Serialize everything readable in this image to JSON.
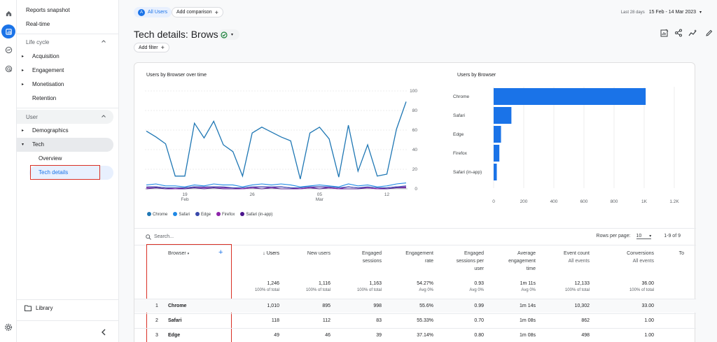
{
  "sidebar": {
    "reports_snapshot": "Reports snapshot",
    "realtime": "Real-time",
    "lifecycle": "Life cycle",
    "acquisition": "Acquisition",
    "engagement": "Engagement",
    "monetisation": "Monetisation",
    "retention": "Retention",
    "user": "User",
    "demographics": "Demographics",
    "tech": "Tech",
    "overview": "Overview",
    "tech_details": "Tech details",
    "library": "Library"
  },
  "header": {
    "all_users": "All Users",
    "all_users_initial": "A",
    "add_comparison": "Add comparison",
    "date_label": "Last 28 days",
    "date_range": "15 Feb - 14 Mar 2023",
    "title": "Tech details: Browser",
    "add_filter": "Add filter"
  },
  "line_chart": {
    "title": "Users by Browser over time",
    "y_ticks": [
      "100",
      "80",
      "60",
      "40",
      "20",
      "0"
    ],
    "x_ticks": [
      {
        "day": "19",
        "month": "Feb"
      },
      {
        "day": "26",
        "month": ""
      },
      {
        "day": "05",
        "month": "Mar"
      },
      {
        "day": "12",
        "month": ""
      }
    ],
    "legend": [
      {
        "name": "Chrome",
        "color": "#1f77b4"
      },
      {
        "name": "Safari",
        "color": "#1e88e5"
      },
      {
        "name": "Edge",
        "color": "#3949ab"
      },
      {
        "name": "Firefox",
        "color": "#8e24aa"
      },
      {
        "name": "Safari (in-app)",
        "color": "#4a148c"
      }
    ]
  },
  "chart_data": [
    {
      "type": "line",
      "title": "Users by Browser over time",
      "x": [
        "15 Feb",
        "16 Feb",
        "17 Feb",
        "18 Feb",
        "19 Feb",
        "20 Feb",
        "21 Feb",
        "22 Feb",
        "23 Feb",
        "24 Feb",
        "25 Feb",
        "26 Feb",
        "27 Feb",
        "28 Feb",
        "01 Mar",
        "02 Mar",
        "03 Mar",
        "04 Mar",
        "05 Mar",
        "06 Mar",
        "07 Mar",
        "08 Mar",
        "09 Mar",
        "10 Mar",
        "11 Mar",
        "12 Mar",
        "13 Mar",
        "14 Mar"
      ],
      "ylim": [
        0,
        100
      ],
      "series": [
        {
          "name": "Chrome",
          "values": [
            59,
            53,
            46,
            13,
            13,
            67,
            52,
            69,
            45,
            38,
            13,
            57,
            63,
            58,
            53,
            49,
            10,
            57,
            63,
            51,
            12,
            65,
            18,
            45,
            13,
            15,
            61,
            89
          ]
        },
        {
          "name": "Safari",
          "values": [
            4,
            5,
            3,
            3,
            2,
            4,
            3,
            5,
            4,
            4,
            2,
            4,
            5,
            4,
            5,
            4,
            2,
            3,
            4,
            3,
            2,
            5,
            3,
            4,
            2,
            3,
            5,
            6
          ]
        },
        {
          "name": "Edge",
          "values": [
            2,
            2,
            1,
            1,
            1,
            2,
            2,
            2,
            2,
            1,
            1,
            2,
            2,
            2,
            2,
            1,
            1,
            2,
            2,
            2,
            1,
            2,
            1,
            2,
            1,
            1,
            2,
            3
          ]
        },
        {
          "name": "Firefox",
          "values": [
            1,
            2,
            1,
            0,
            1,
            2,
            1,
            2,
            1,
            1,
            0,
            1,
            2,
            1,
            2,
            1,
            0,
            1,
            2,
            1,
            0,
            2,
            1,
            1,
            0,
            1,
            2,
            2
          ]
        },
        {
          "name": "Safari (in-app)",
          "values": [
            0,
            1,
            0,
            0,
            0,
            1,
            0,
            1,
            0,
            0,
            0,
            1,
            0,
            1,
            0,
            0,
            0,
            1,
            0,
            1,
            0,
            0,
            0,
            1,
            0,
            0,
            1,
            1
          ]
        }
      ]
    },
    {
      "type": "bar",
      "title": "Users by Browser",
      "categories": [
        "Chrome",
        "Safari",
        "Edge",
        "Firefox",
        "Safari (in-app)"
      ],
      "values": [
        1010,
        118,
        49,
        38,
        21
      ],
      "xlim": [
        0,
        1200
      ],
      "x_ticks": [
        "0",
        "200",
        "400",
        "600",
        "800",
        "1K",
        "1.2K"
      ],
      "color": "#1a73e8"
    }
  ],
  "table": {
    "search_placeholder": "Search...",
    "rows_per_page_label": "Rows per page:",
    "rows_per_page": "10",
    "pagination": "1-9 of 9",
    "dim_header": "Browser",
    "columns": [
      {
        "l1": "↓ Users",
        "l2": "",
        "l3": "",
        "total": "1,246",
        "sub": "100% of total"
      },
      {
        "l1": "New users",
        "l2": "",
        "l3": "",
        "total": "1,116",
        "sub": "100% of total"
      },
      {
        "l1": "Engaged",
        "l2": "sessions",
        "l3": "",
        "total": "1,163",
        "sub": "100% of total"
      },
      {
        "l1": "Engagement",
        "l2": "rate",
        "l3": "",
        "total": "54.27%",
        "sub": "Avg 0%"
      },
      {
        "l1": "Engaged",
        "l2": "sessions per",
        "l3": "user",
        "total": "0.93",
        "sub": "Avg 0%"
      },
      {
        "l1": "Average",
        "l2": "engagement",
        "l3": "time",
        "total": "1m 11s",
        "sub": "Avg 0%"
      },
      {
        "l1": "Event count",
        "l2": "All events",
        "l3": "",
        "total": "12,133",
        "sub": "100% of total"
      },
      {
        "l1": "Conversions",
        "l2": "All events",
        "l3": "",
        "total": "36.00",
        "sub": "100% of total"
      },
      {
        "l1": "To",
        "l2": "",
        "l3": "",
        "total": "",
        "sub": ""
      }
    ],
    "rows": [
      {
        "idx": "1",
        "name": "Chrome",
        "vals": [
          "1,010",
          "895",
          "998",
          "55.6%",
          "0.99",
          "1m 14s",
          "10,302",
          "33.00"
        ]
      },
      {
        "idx": "2",
        "name": "Safari",
        "vals": [
          "118",
          "112",
          "83",
          "55.33%",
          "0.70",
          "1m 08s",
          "862",
          "1.00"
        ]
      },
      {
        "idx": "3",
        "name": "Edge",
        "vals": [
          "49",
          "46",
          "39",
          "37.14%",
          "0.80",
          "1m 08s",
          "498",
          "1.00"
        ]
      }
    ]
  }
}
